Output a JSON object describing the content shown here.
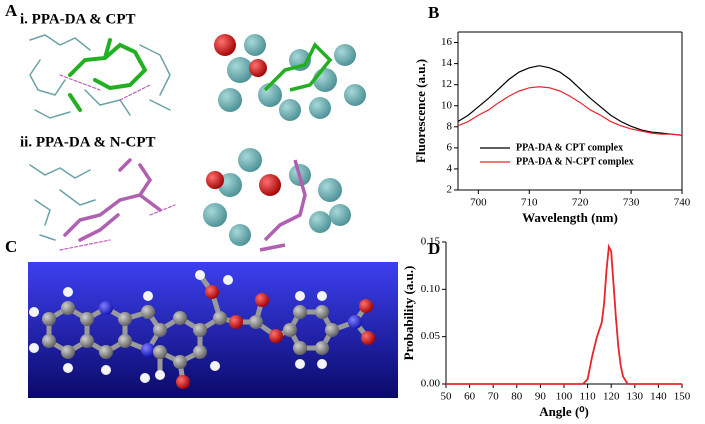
{
  "panel_labels": {
    "a": "A",
    "b": "B",
    "c": "C",
    "d": "D"
  },
  "panel_a": {
    "captions": [
      "i. PPA-DA & CPT",
      "ii. PPA-DA & N-CPT"
    ]
  },
  "chart_data": [
    {
      "type": "line",
      "ylabel": "Fluorescence (a.u.)",
      "xlabel": "Wavelength (nm)",
      "x": [
        696,
        698,
        700,
        702,
        704,
        706,
        708,
        710,
        712,
        714,
        716,
        718,
        720,
        722,
        724,
        726,
        728,
        730,
        732,
        734,
        736,
        738,
        740
      ],
      "series": [
        {
          "name": "PPA-DA & CPT complex",
          "color": "#000000",
          "values": [
            8.5,
            9.1,
            9.9,
            10.7,
            11.6,
            12.5,
            13.2,
            13.6,
            13.8,
            13.6,
            13.2,
            12.5,
            11.6,
            10.7,
            9.9,
            9.1,
            8.5,
            8.05,
            7.7,
            7.5,
            7.4,
            7.3,
            7.2
          ]
        },
        {
          "name": "PPA-DA & N-CPT complex",
          "color": "#e8262a",
          "values": [
            8.1,
            8.5,
            9.1,
            9.6,
            10.3,
            10.9,
            11.4,
            11.7,
            11.8,
            11.7,
            11.4,
            10.9,
            10.3,
            9.6,
            9.1,
            8.5,
            8.1,
            7.8,
            7.6,
            7.4,
            7.3,
            7.3,
            7.2
          ]
        }
      ],
      "xlim": [
        696,
        740
      ],
      "xticks": [
        700,
        710,
        720,
        730,
        740
      ],
      "ylim": [
        2,
        17
      ],
      "yticks": [
        2,
        4,
        6,
        8,
        10,
        12,
        14,
        16
      ],
      "box": true,
      "legend": "lower left"
    },
    {
      "type": "line",
      "ylabel": "Probability (a.u.)",
      "xlabel": "Angle (⁰)",
      "x": [
        50,
        108,
        110,
        112,
        114,
        116,
        117,
        118,
        119,
        120,
        121,
        122,
        123,
        124,
        125,
        127,
        150
      ],
      "series": [
        {
          "color": "#e8262a",
          "values": [
            0,
            0,
            0.005,
            0.03,
            0.05,
            0.065,
            0.085,
            0.12,
            0.145,
            0.14,
            0.105,
            0.07,
            0.04,
            0.02,
            0.008,
            0,
            0
          ]
        }
      ],
      "xlim": [
        50,
        150
      ],
      "xticks": [
        50,
        60,
        70,
        80,
        90,
        100,
        110,
        120,
        130,
        140,
        150
      ],
      "ylim": [
        0,
        0.15
      ],
      "yticks": [
        {
          "value": 0,
          "label": "0.00"
        },
        {
          "value": 0.05,
          "label": "0.05"
        },
        {
          "value": 0.1,
          "label": "0.10"
        },
        {
          "value": 0.15,
          "label": "0.15"
        }
      ],
      "box": false
    }
  ]
}
